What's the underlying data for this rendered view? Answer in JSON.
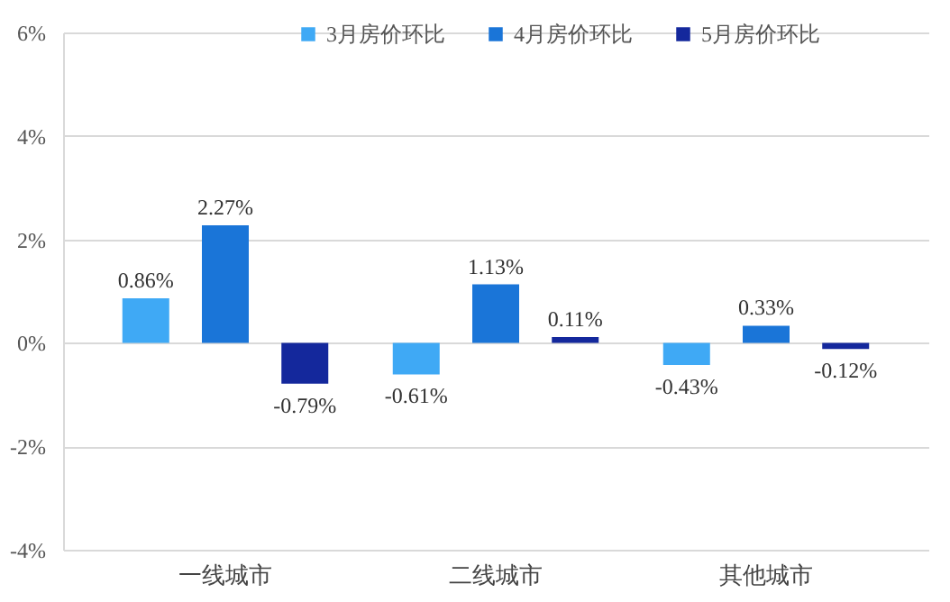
{
  "chart_data": {
    "type": "bar",
    "categories": [
      "一线城市",
      "二线城市",
      "其他城市"
    ],
    "series": [
      {
        "name": "3月房价环比",
        "color": "#3fa9f5",
        "values": [
          0.86,
          -0.61,
          -0.43
        ],
        "value_labels": [
          "0.86%",
          "-0.61%",
          "-0.43%"
        ]
      },
      {
        "name": "4月房价环比",
        "color": "#1a75d8",
        "values": [
          2.27,
          1.13,
          0.33
        ],
        "value_labels": [
          "2.27%",
          "1.13%",
          "0.33%"
        ]
      },
      {
        "name": "5月房价环比",
        "color": "#14289c",
        "values": [
          -0.79,
          0.11,
          -0.12
        ],
        "value_labels": [
          "-0.79%",
          "0.11%",
          "-0.12%"
        ]
      }
    ],
    "ylim": [
      -4,
      6
    ],
    "yticks": [
      {
        "value": -4,
        "label": "-4%"
      },
      {
        "value": -2,
        "label": "-2%"
      },
      {
        "value": 0,
        "label": "0%"
      },
      {
        "value": 2,
        "label": "2%"
      },
      {
        "value": 4,
        "label": "4%"
      },
      {
        "value": 6,
        "label": "6%"
      }
    ],
    "grid": "y",
    "legend": "top"
  }
}
